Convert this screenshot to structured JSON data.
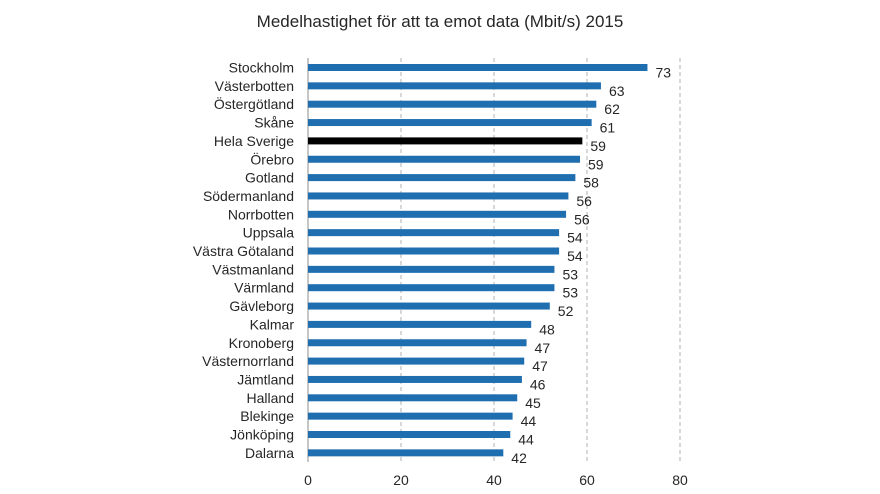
{
  "chart_data": {
    "type": "bar",
    "orientation": "horizontal",
    "title": "Medelhastighet för att ta emot data (Mbit/s) 2015",
    "xlabel": "",
    "ylabel": "",
    "xlim": [
      0,
      80
    ],
    "xticks": [
      "0",
      "20",
      "40",
      "60",
      "80"
    ],
    "grid": "vertical dashed",
    "legend": "none",
    "data_labels": true,
    "colors": {
      "bar": "#1f6eb0",
      "highlight": "#000000",
      "grid": "#b0b0b0",
      "axis": "#8c8c8c"
    },
    "highlight_category": "Hela Sverige",
    "categories": [
      "Stockholm",
      "Västerbotten",
      "Östergötland",
      "Skåne",
      "Hela Sverige",
      "Örebro",
      "Gotland",
      "Södermanland",
      "Norrbotten",
      "Uppsala",
      "Västra Götaland",
      "Västmanland",
      "Värmland",
      "Gävleborg",
      "Kalmar",
      "Kronoberg",
      "Västernorrland",
      "Jämtland",
      "Halland",
      "Blekinge",
      "Jönköping",
      "Dalarna"
    ],
    "values": [
      73,
      63,
      62,
      61,
      59,
      59,
      58,
      56,
      56,
      54,
      54,
      53,
      53,
      52,
      48,
      47,
      47,
      46,
      45,
      44,
      44,
      42
    ],
    "bar_values": [
      73,
      63,
      62,
      61,
      59,
      58.5,
      57.5,
      56,
      55.5,
      54,
      54,
      53,
      53,
      52,
      48,
      47,
      46.5,
      46,
      45,
      44,
      43.5,
      42
    ]
  }
}
